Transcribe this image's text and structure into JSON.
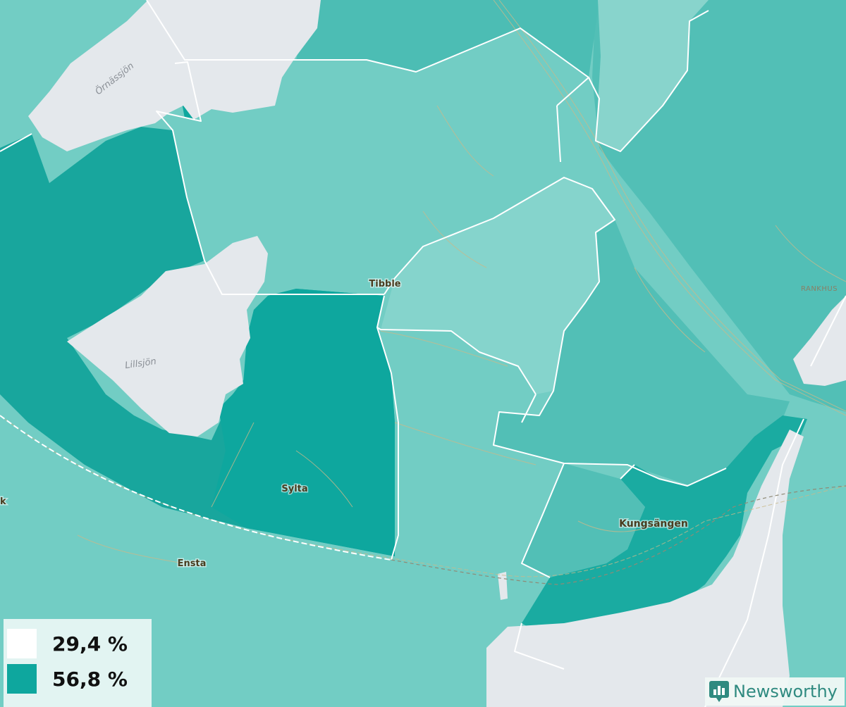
{
  "colors": {
    "low": "#ffffff",
    "high": "#0ea79e",
    "water": "#e4e8ec",
    "boundary": "#ffffff",
    "road": "#c9b98b"
  },
  "places": {
    "tibble": "Tibble",
    "sylta": "Sylta",
    "ensta": "Ensta",
    "kungsangen": "Kungsängen",
    "rankhus": "RANKHUS",
    "k_fragment": "k"
  },
  "water": {
    "ornassjon": "Örnässjön",
    "lillsjon": "Lillsjön"
  },
  "legend": {
    "items": [
      {
        "label": "29,4 %",
        "color": "#ffffff"
      },
      {
        "label": "56,8 %",
        "color": "#0ea79e"
      }
    ]
  },
  "brand": {
    "name": "Newsworthy",
    "icon": "newsworthy-logo-icon"
  }
}
